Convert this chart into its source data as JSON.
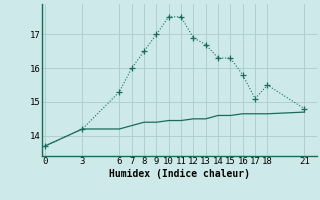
{
  "xlabel": "Humidex (Indice chaleur)",
  "ylabel": "",
  "bg_color": "#cde9e9",
  "grid_color": "#b0d0d0",
  "line_color": "#1a6b5a",
  "line1_x": [
    0,
    3,
    6,
    7,
    8,
    9,
    10,
    11,
    12,
    13,
    14,
    15,
    16,
    17,
    18,
    21
  ],
  "line1_y": [
    13.7,
    14.2,
    15.3,
    16.0,
    16.5,
    17.0,
    17.52,
    17.52,
    16.9,
    16.7,
    16.3,
    16.3,
    15.8,
    15.1,
    15.5,
    14.8
  ],
  "line2_x": [
    0,
    3,
    6,
    7,
    8,
    9,
    10,
    11,
    12,
    13,
    14,
    15,
    16,
    17,
    18,
    21
  ],
  "line2_y": [
    13.7,
    14.2,
    14.2,
    14.3,
    14.4,
    14.4,
    14.45,
    14.45,
    14.5,
    14.5,
    14.6,
    14.6,
    14.65,
    14.65,
    14.65,
    14.7
  ],
  "xticks": [
    0,
    3,
    6,
    7,
    8,
    9,
    10,
    11,
    12,
    13,
    14,
    15,
    16,
    17,
    18,
    21
  ],
  "yticks": [
    14,
    15,
    16,
    17
  ],
  "xlim": [
    -0.3,
    22.0
  ],
  "ylim": [
    13.4,
    17.9
  ]
}
